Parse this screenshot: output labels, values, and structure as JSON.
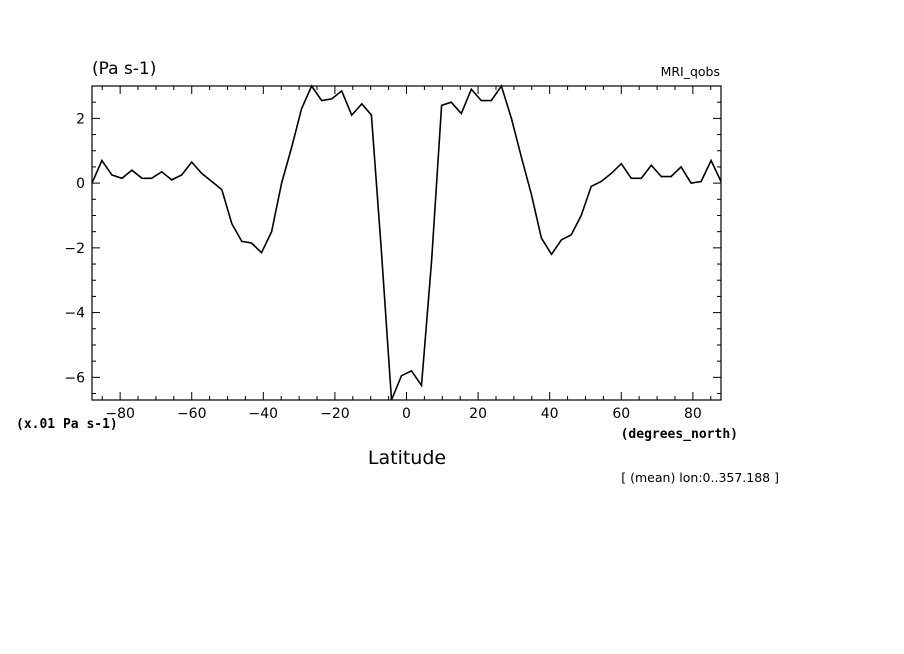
{
  "header": {
    "units_label": "(Pa s-1)",
    "dataset_label": "MRI_qobs",
    "scale_note": "(x.01 Pa s-1)",
    "x_units": "(degrees_north)",
    "x_title": "Latitude",
    "footnote": "[ (mean) lon:0..357.188 ]"
  },
  "chart_data": {
    "type": "line",
    "title": "",
    "xlabel": "Latitude",
    "ylabel": "(Pa s-1)",
    "xlim": [
      -87.86,
      87.86
    ],
    "ylim": [
      -6.7,
      3.0
    ],
    "x_ticks": [
      -80,
      -60,
      -40,
      -20,
      0,
      20,
      40,
      60,
      80
    ],
    "y_ticks": [
      2,
      0,
      -2,
      -4,
      -6
    ],
    "grid": false,
    "series": [
      {
        "color": "#000000",
        "x": [
          -87.86,
          -85.1,
          -82.3,
          -79.5,
          -76.7,
          -73.9,
          -71.2,
          -68.4,
          -65.6,
          -62.8,
          -60.0,
          -57.2,
          -54.4,
          -51.6,
          -48.8,
          -46.0,
          -43.3,
          -40.5,
          -37.7,
          -34.9,
          -32.1,
          -29.3,
          -26.5,
          -23.7,
          -20.9,
          -18.1,
          -15.3,
          -12.5,
          -9.8,
          -7.0,
          -4.2,
          -1.4,
          1.4,
          4.2,
          7.0,
          9.8,
          12.5,
          15.3,
          18.1,
          20.9,
          23.7,
          26.5,
          29.3,
          32.1,
          34.9,
          37.7,
          40.5,
          43.3,
          46.0,
          48.8,
          51.6,
          54.4,
          57.2,
          60.0,
          62.8,
          65.6,
          68.4,
          71.2,
          73.9,
          76.7,
          79.5,
          82.3,
          85.1,
          87.86
        ],
        "y": [
          0.0,
          0.7,
          0.25,
          0.15,
          0.4,
          0.15,
          0.15,
          0.35,
          0.1,
          0.25,
          0.65,
          0.3,
          0.05,
          -0.2,
          -1.25,
          -1.8,
          -1.85,
          -2.15,
          -1.5,
          0.0,
          1.1,
          2.3,
          3.0,
          2.55,
          2.6,
          2.85,
          2.1,
          2.45,
          2.1,
          -2.1,
          -6.7,
          -5.95,
          -5.8,
          -6.25,
          -2.4,
          2.4,
          2.5,
          2.15,
          2.9,
          2.55,
          2.55,
          3.0,
          2.0,
          0.8,
          -0.35,
          -1.7,
          -2.2,
          -1.75,
          -1.6,
          -1.0,
          -0.1,
          0.05,
          0.3,
          0.6,
          0.15,
          0.15,
          0.55,
          0.2,
          0.2,
          0.5,
          0.0,
          0.05,
          0.7,
          0.05
        ]
      }
    ]
  }
}
